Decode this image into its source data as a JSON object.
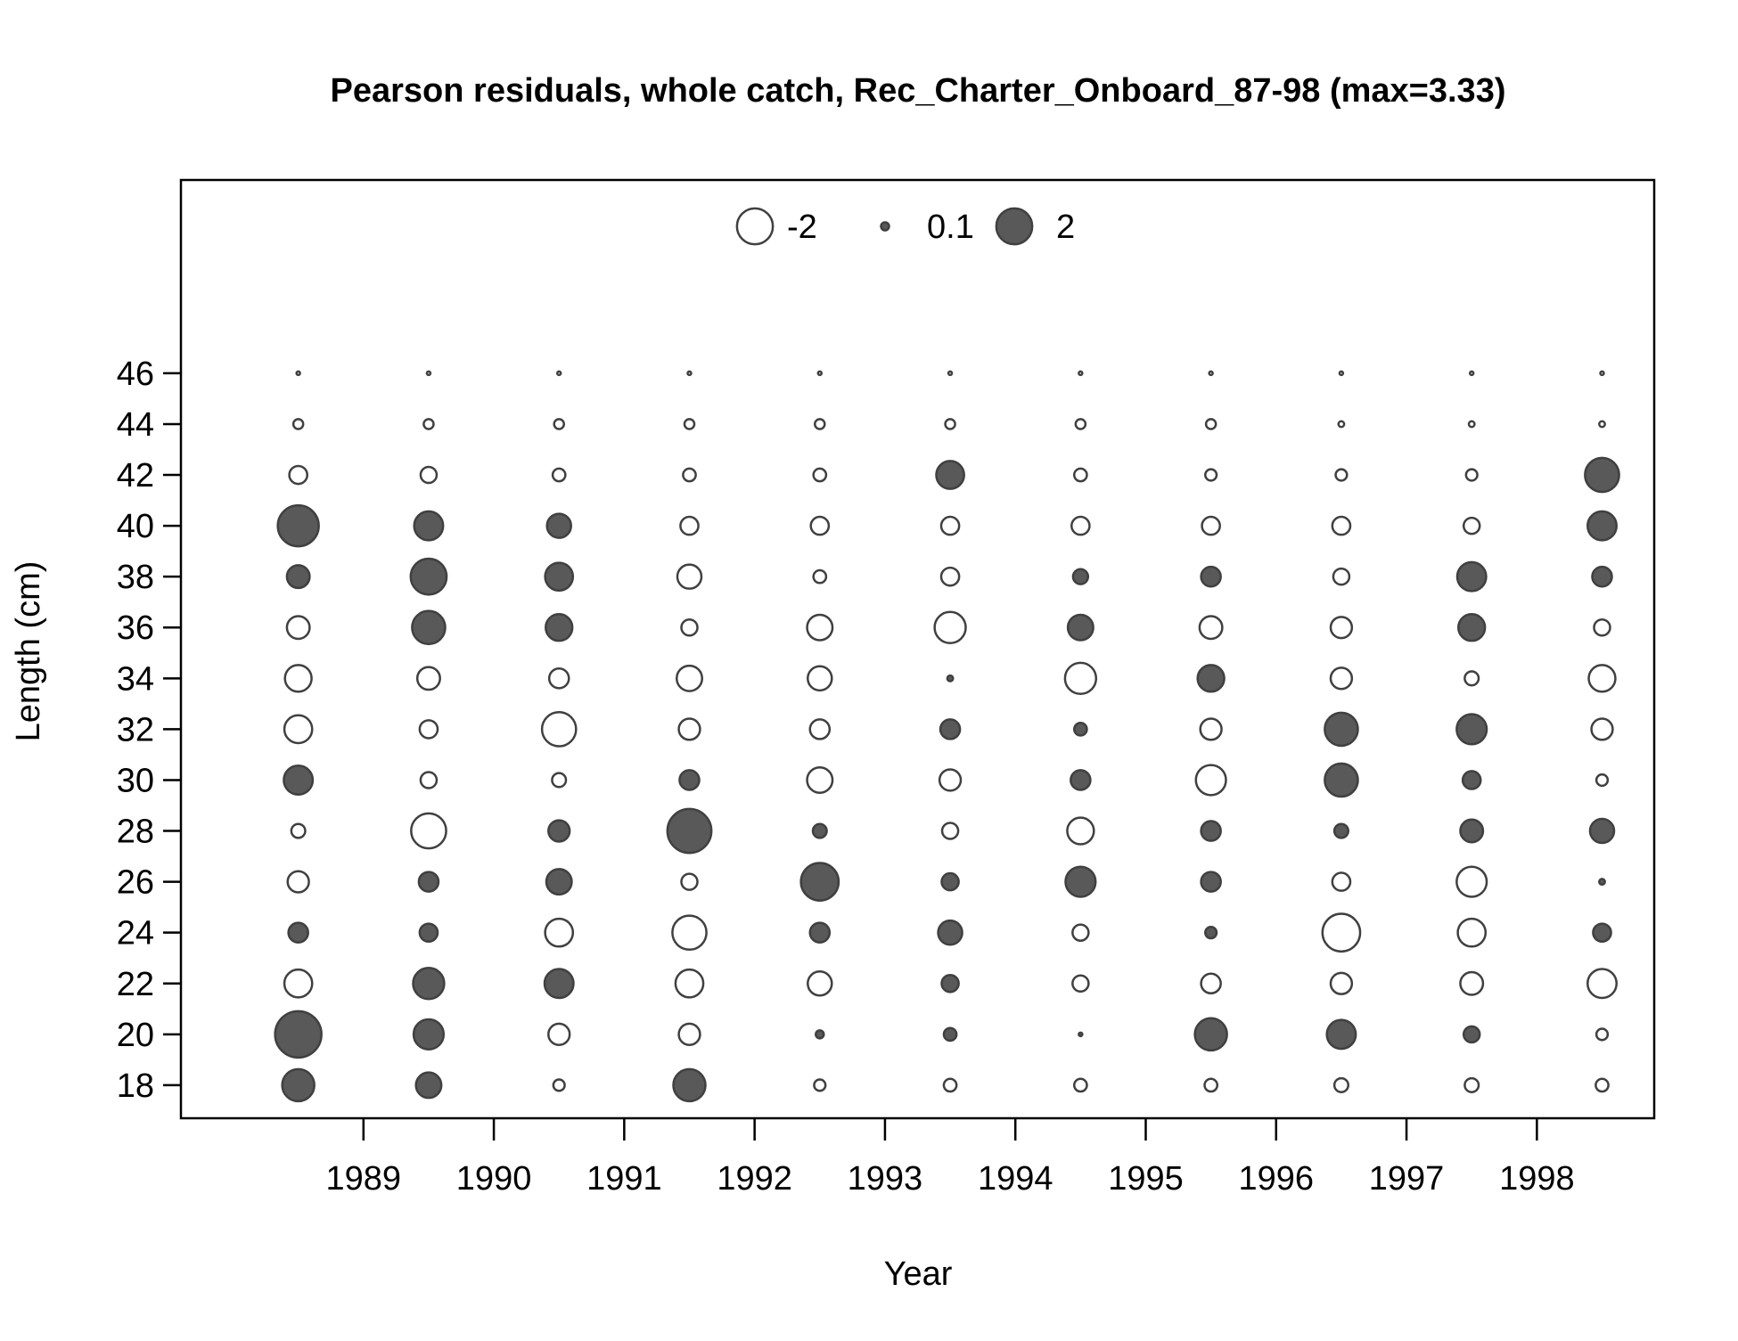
{
  "chart_data": {
    "type": "bubble",
    "title": "Pearson residuals, whole catch, Rec_Charter_Onboard_87-98 (max=3.33)",
    "xlabel": "Year",
    "ylabel": "Length (cm)",
    "x_ticks": [
      1989,
      1990,
      1991,
      1992,
      1993,
      1994,
      1995,
      1996,
      1997,
      1998
    ],
    "y_ticks": [
      18,
      20,
      22,
      24,
      26,
      28,
      30,
      32,
      34,
      36,
      38,
      40,
      42,
      44,
      46
    ],
    "xlim": [
      1987.6,
      1998.9
    ],
    "ylim": [
      16.7,
      53.6
    ],
    "max_residual": 3.33,
    "positive_color": "#595959",
    "negative_color": "#ffffff",
    "stroke_color": "#404040",
    "legend": {
      "placement": "top",
      "entries": [
        {
          "label": "-2",
          "value": -2
        },
        {
          "label": "0.1",
          "value": 0.1
        },
        {
          "label": "2",
          "value": 2
        }
      ]
    },
    "series": [
      {
        "x": 1988.5,
        "y_values": [
          18,
          20,
          22,
          24,
          26,
          28,
          30,
          32,
          34,
          36,
          38,
          40,
          42,
          44,
          46
        ],
        "residuals": [
          1.6,
          3.33,
          -1.2,
          0.6,
          -0.7,
          -0.3,
          1.3,
          -1.2,
          -1.1,
          -0.8,
          0.8,
          2.6,
          -0.5,
          -0.15,
          -0.02
        ]
      },
      {
        "x": 1989.5,
        "y_values": [
          18,
          20,
          22,
          24,
          26,
          28,
          30,
          32,
          34,
          36,
          38,
          40,
          42,
          44,
          46
        ],
        "residuals": [
          1.0,
          1.4,
          1.5,
          0.5,
          0.6,
          -1.9,
          -0.4,
          -0.5,
          -0.8,
          1.7,
          2.0,
          1.3,
          -0.4,
          -0.15,
          -0.02
        ]
      },
      {
        "x": 1990.5,
        "y_values": [
          18,
          20,
          22,
          24,
          26,
          28,
          30,
          32,
          34,
          36,
          38,
          40,
          42,
          44,
          46
        ],
        "residuals": [
          -0.2,
          -0.7,
          1.3,
          -1.2,
          1.0,
          0.7,
          -0.3,
          -1.8,
          -0.6,
          1.1,
          1.2,
          0.9,
          -0.25,
          -0.15,
          -0.02
        ]
      },
      {
        "x": 1991.5,
        "y_values": [
          18,
          20,
          22,
          24,
          26,
          28,
          30,
          32,
          34,
          36,
          38,
          40,
          42,
          44,
          46
        ],
        "residuals": [
          1.6,
          -0.7,
          -1.2,
          -1.8,
          -0.4,
          3.0,
          0.6,
          -0.7,
          -1.0,
          -0.4,
          -0.9,
          -0.5,
          -0.25,
          -0.15,
          -0.02
        ]
      },
      {
        "x": 1992.5,
        "y_values": [
          18,
          20,
          22,
          24,
          26,
          28,
          30,
          32,
          34,
          36,
          38,
          40,
          42,
          44,
          46
        ],
        "residuals": [
          -0.2,
          0.1,
          -0.9,
          0.6,
          2.2,
          0.3,
          -1.0,
          -0.6,
          -0.9,
          -1.0,
          -0.25,
          -0.5,
          -0.25,
          -0.15,
          -0.02
        ]
      },
      {
        "x": 1993.5,
        "y_values": [
          18,
          20,
          22,
          24,
          26,
          28,
          30,
          32,
          34,
          36,
          38,
          40,
          42,
          44,
          46
        ],
        "residuals": [
          -0.25,
          0.25,
          0.45,
          0.9,
          0.45,
          -0.4,
          -0.7,
          0.6,
          0.05,
          -1.5,
          -0.5,
          -0.5,
          1.2,
          -0.15,
          -0.02
        ]
      },
      {
        "x": 1994.5,
        "y_values": [
          18,
          20,
          22,
          24,
          26,
          28,
          30,
          32,
          34,
          36,
          38,
          40,
          42,
          44,
          46
        ],
        "residuals": [
          -0.25,
          0.02,
          -0.4,
          -0.4,
          1.4,
          -1.1,
          0.6,
          0.25,
          -1.5,
          1.0,
          0.35,
          -0.5,
          -0.25,
          -0.15,
          -0.02
        ]
      },
      {
        "x": 1995.5,
        "y_values": [
          18,
          20,
          22,
          24,
          26,
          28,
          30,
          32,
          34,
          36,
          38,
          40,
          42,
          44,
          46
        ],
        "residuals": [
          -0.25,
          1.6,
          -0.6,
          0.2,
          0.6,
          0.6,
          -1.4,
          -0.7,
          1.1,
          -0.8,
          0.6,
          -0.5,
          -0.2,
          -0.15,
          -0.02
        ]
      },
      {
        "x": 1996.5,
        "y_values": [
          18,
          20,
          22,
          24,
          26,
          28,
          30,
          32,
          34,
          36,
          38,
          40,
          42,
          44,
          46
        ],
        "residuals": [
          -0.3,
          1.3,
          -0.7,
          -2.2,
          -0.5,
          0.3,
          1.7,
          1.7,
          -0.7,
          -0.7,
          -0.4,
          -0.5,
          -0.2,
          -0.05,
          -0.02
        ]
      },
      {
        "x": 1997.5,
        "y_values": [
          18,
          20,
          22,
          24,
          26,
          28,
          30,
          32,
          34,
          36,
          38,
          40,
          42,
          44,
          46
        ],
        "residuals": [
          -0.3,
          0.4,
          -0.8,
          -1.2,
          -1.4,
          0.8,
          0.5,
          1.4,
          -0.3,
          1.1,
          1.3,
          -0.4,
          -0.2,
          -0.05,
          -0.02
        ]
      },
      {
        "x": 1998.5,
        "y_values": [
          18,
          20,
          22,
          24,
          26,
          28,
          30,
          32,
          34,
          36,
          38,
          40,
          42,
          44,
          46
        ],
        "residuals": [
          -0.25,
          -0.2,
          -1.3,
          0.5,
          0.05,
          0.9,
          -0.2,
          -0.7,
          -1.1,
          -0.4,
          0.6,
          1.3,
          1.8,
          -0.05,
          -0.02
        ]
      }
    ]
  }
}
